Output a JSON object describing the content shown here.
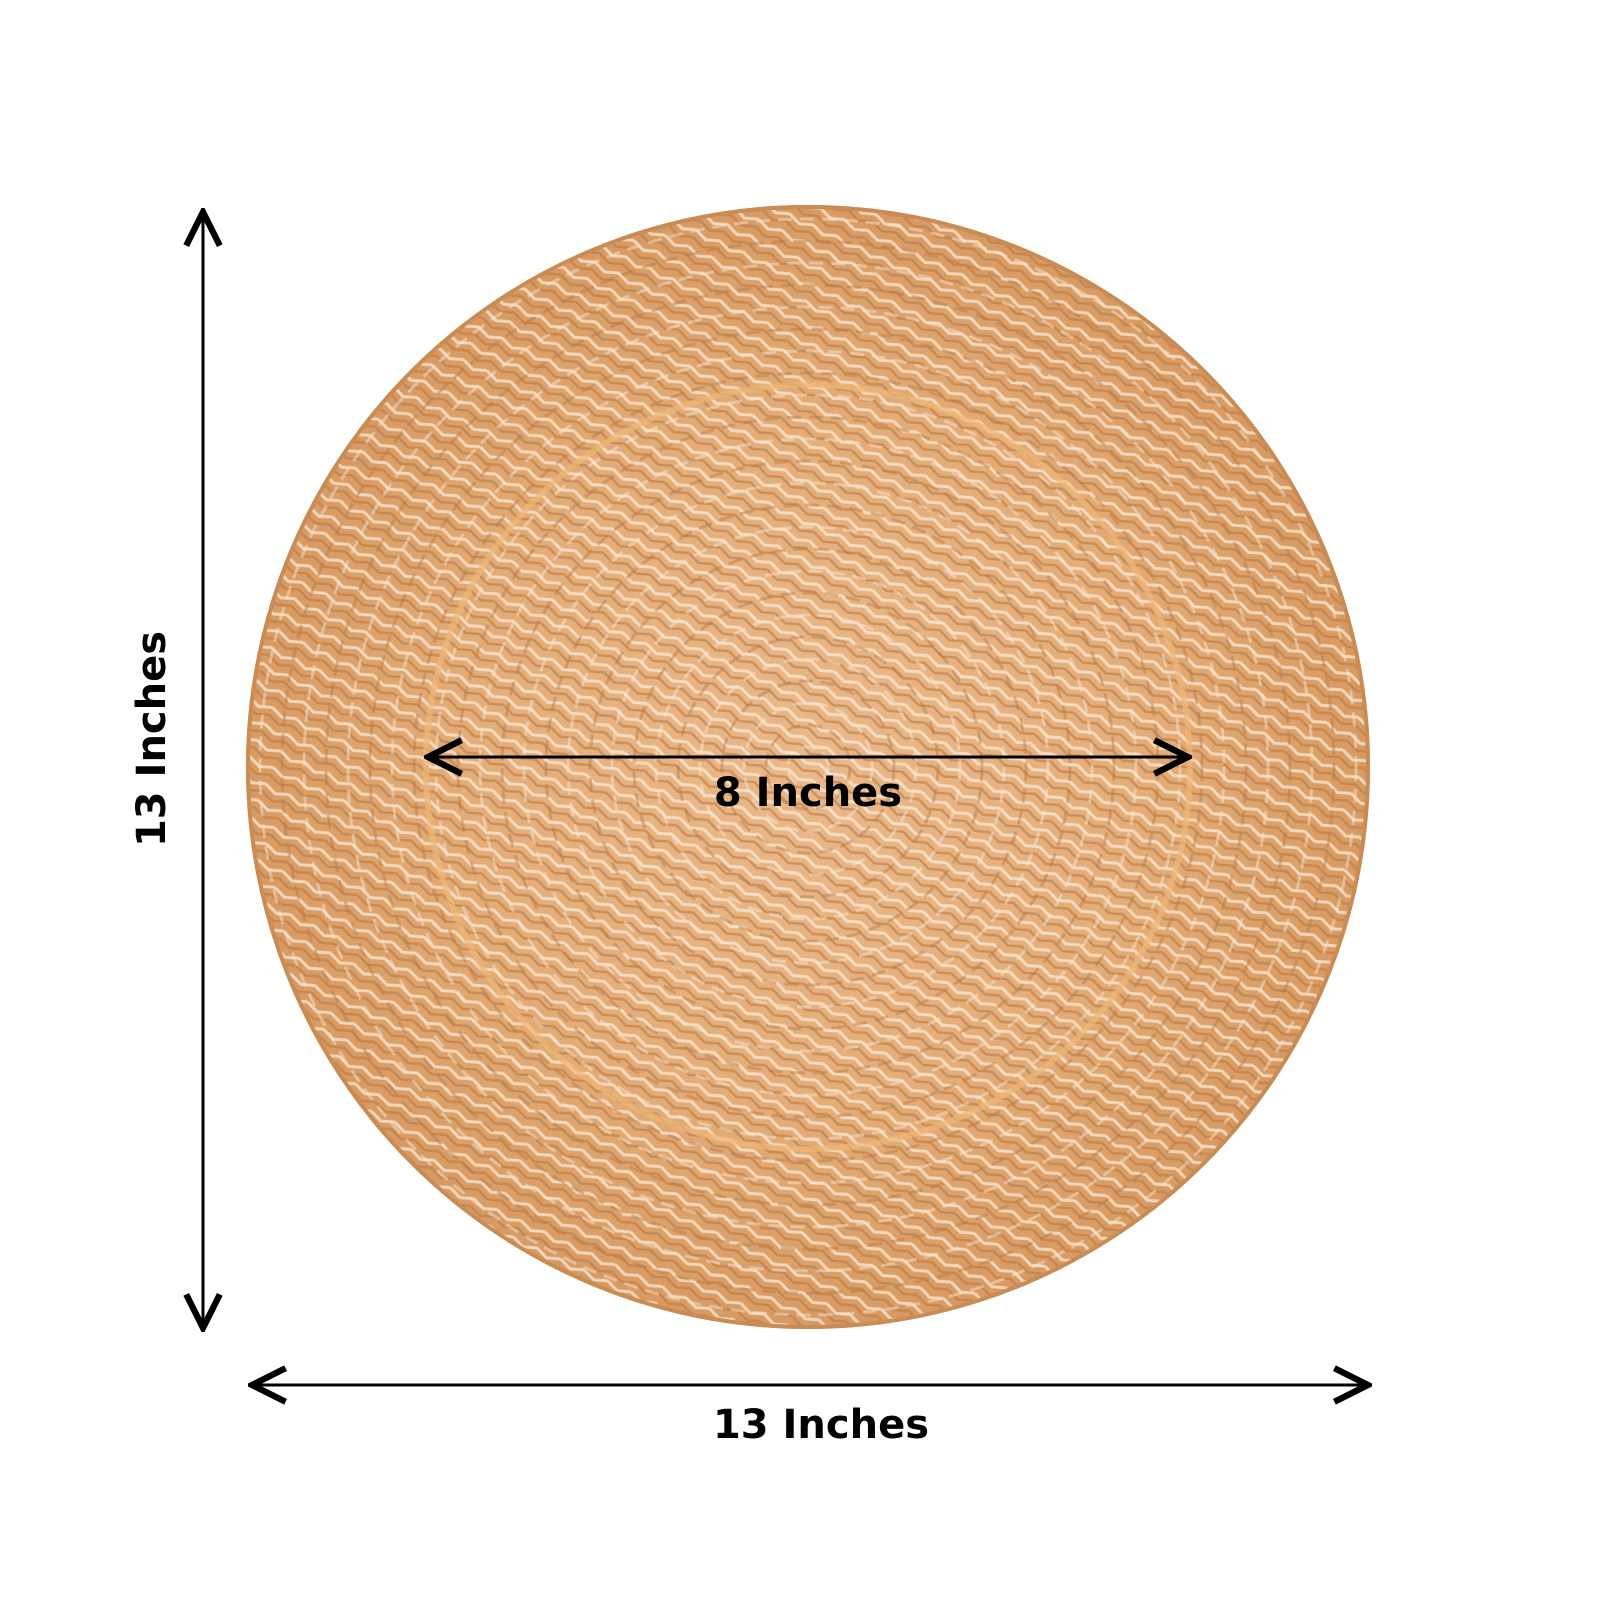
{
  "labels": {
    "height": "13 Inches",
    "width": "13 Inches",
    "inner": "8 Inches"
  },
  "colors": {
    "plate": "#e0a872",
    "plate_highlight": "#fbe9d6",
    "plate_shadow": "#b97a45",
    "arrows": "#000000",
    "background": "#ffffff"
  }
}
